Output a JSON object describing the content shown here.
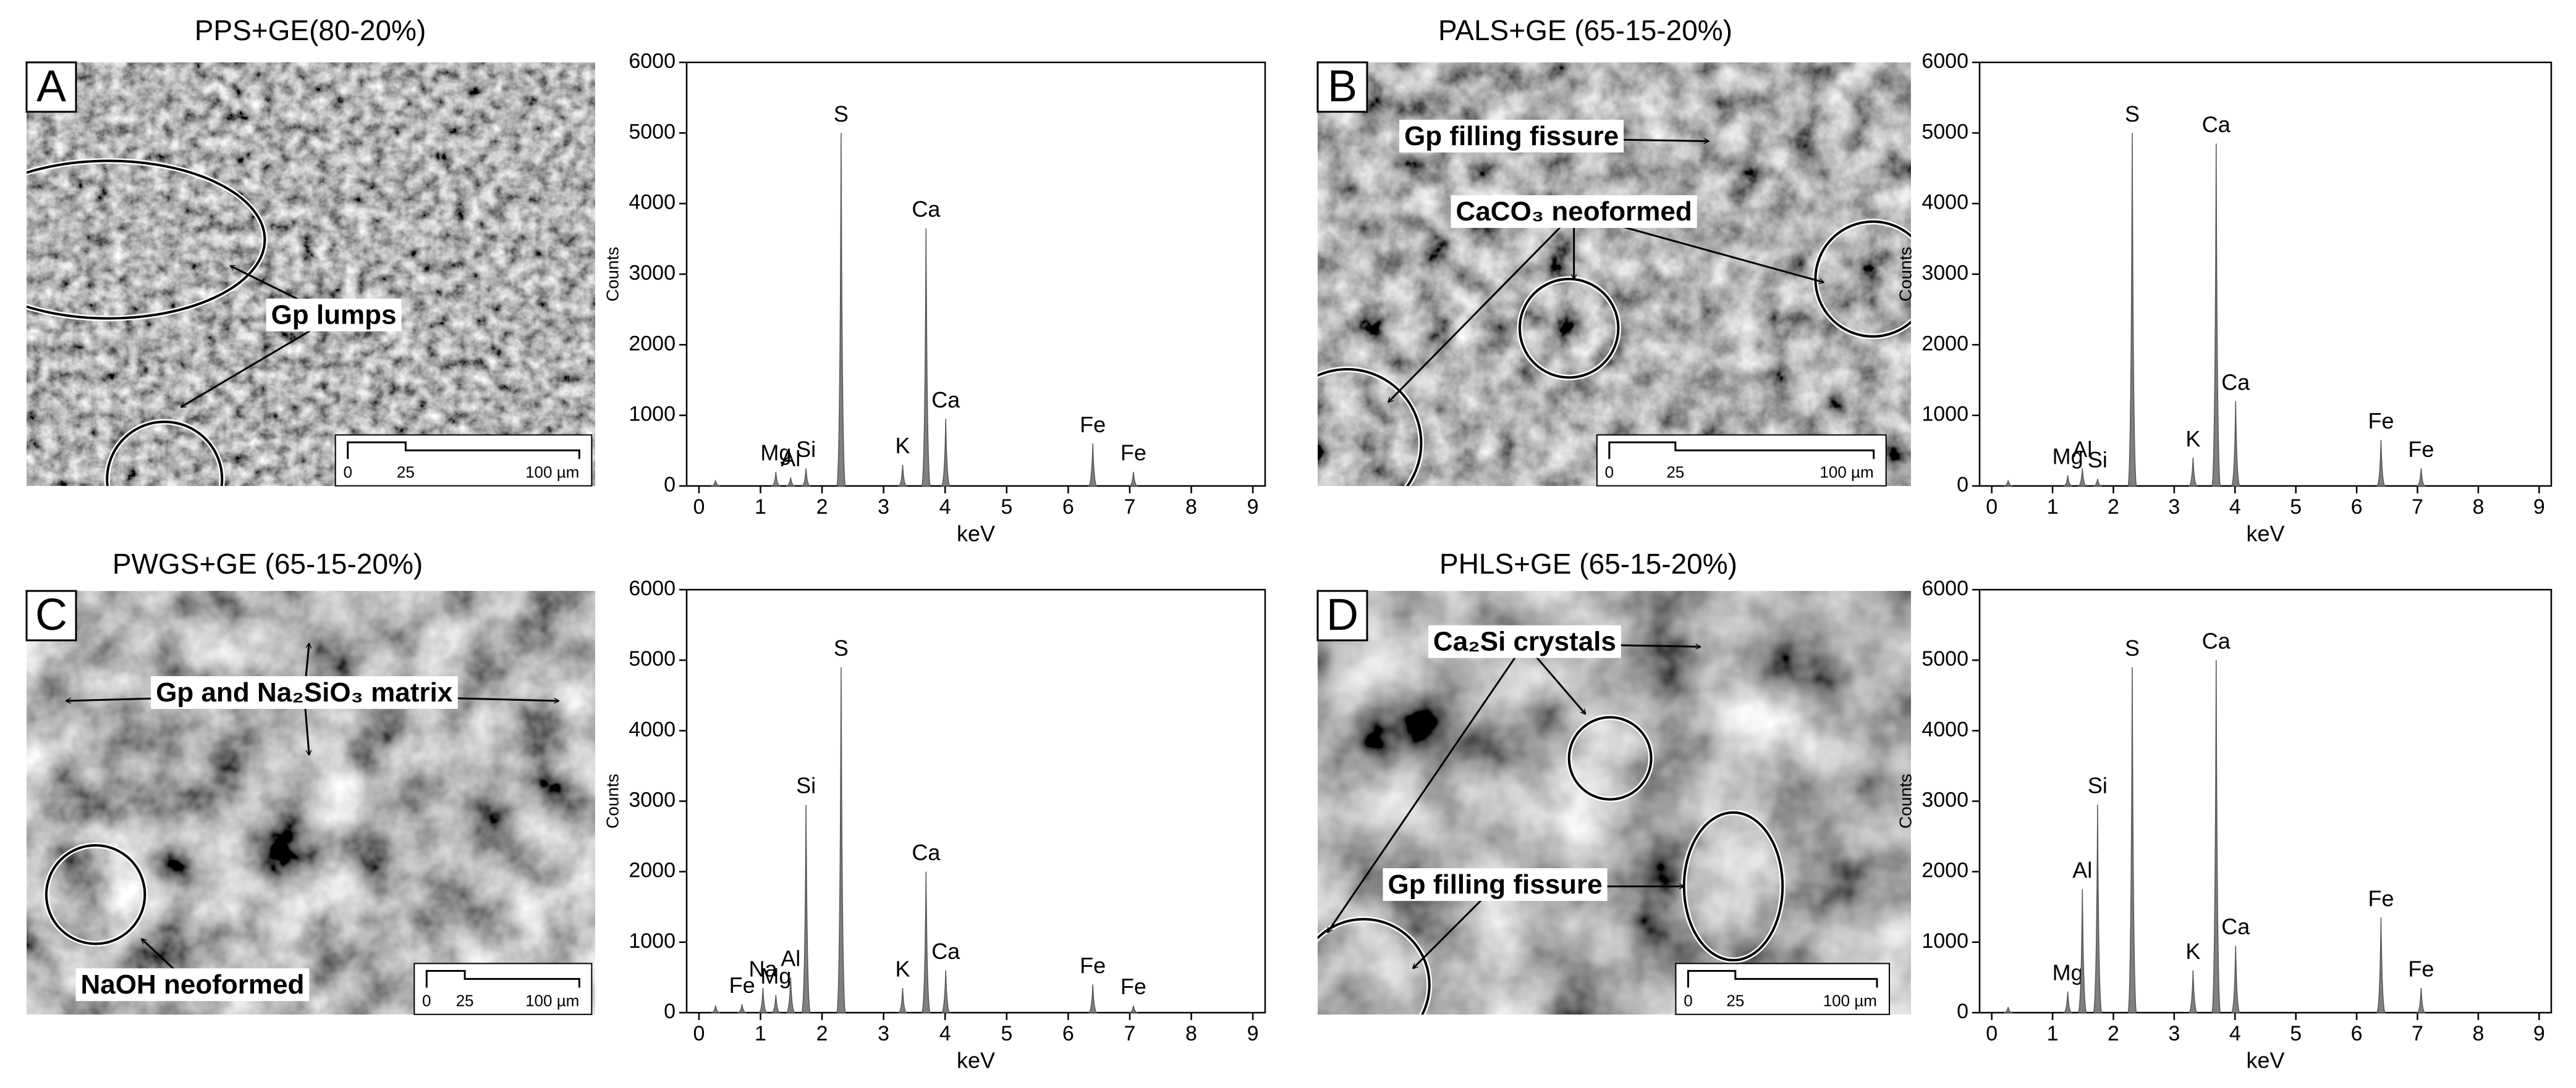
{
  "micrographs": [
    {
      "letter": "A",
      "title": "PPS+GE(80-20%)",
      "annotations": [
        "Gp lumps"
      ],
      "scale": [
        "0",
        "25",
        "100 µm"
      ]
    },
    {
      "letter": "B",
      "title": "PALS+GE (65-15-20%)",
      "annotations": [
        "Gp filling fissure",
        "CaCO₃ neoformed"
      ],
      "scale": [
        "0",
        "25",
        "100 µm"
      ]
    },
    {
      "letter": "C",
      "title": "PWGS+GE (65-15-20%)",
      "annotations": [
        "Gp and Na₂SiO₃ matrix",
        "NaOH neoformed"
      ],
      "scale": [
        "0",
        "25",
        "100 µm"
      ]
    },
    {
      "letter": "D",
      "title": "PHLS+GE (65-15-20%)",
      "annotations": [
        "Ca₂Si crystals",
        "Gp filling fissure"
      ],
      "scale": [
        "0",
        "25",
        "100 µm"
      ]
    }
  ],
  "chart_data": [
    {
      "type": "area",
      "xlabel": "keV",
      "ylabel": "Counts",
      "color": "#808080",
      "xlim": [
        -0.2,
        9.2
      ],
      "ylim": [
        0,
        6000
      ],
      "xticks": [
        0,
        1,
        2,
        3,
        4,
        5,
        6,
        7,
        8,
        9
      ],
      "yticks": [
        0,
        1000,
        2000,
        3000,
        4000,
        5000,
        6000
      ],
      "peaks": [
        {
          "label": null,
          "x": 0.27,
          "value": 80
        },
        {
          "label": "Mg",
          "x": 1.25,
          "value": 200
        },
        {
          "label": "Al",
          "x": 1.49,
          "value": 120
        },
        {
          "label": "Si",
          "x": 1.74,
          "value": 250
        },
        {
          "label": "S",
          "x": 2.31,
          "value": 5000
        },
        {
          "label": "K",
          "x": 3.31,
          "value": 300
        },
        {
          "label": "Ca",
          "x": 3.69,
          "value": 3650
        },
        {
          "label": "Ca",
          "x": 4.01,
          "value": 950
        },
        {
          "label": "Fe",
          "x": 6.4,
          "value": 600
        },
        {
          "label": "Fe",
          "x": 7.06,
          "value": 200
        }
      ]
    },
    {
      "type": "area",
      "xlabel": "keV",
      "ylabel": "Counts",
      "color": "#808080",
      "xlim": [
        -0.2,
        9.2
      ],
      "ylim": [
        0,
        6000
      ],
      "xticks": [
        0,
        1,
        2,
        3,
        4,
        5,
        6,
        7,
        8,
        9
      ],
      "yticks": [
        0,
        1000,
        2000,
        3000,
        4000,
        5000,
        6000
      ],
      "peaks": [
        {
          "label": null,
          "x": 0.27,
          "value": 80
        },
        {
          "label": "Mg",
          "x": 1.25,
          "value": 150
        },
        {
          "label": "Al",
          "x": 1.49,
          "value": 250
        },
        {
          "label": "Si",
          "x": 1.74,
          "value": 100
        },
        {
          "label": "S",
          "x": 2.31,
          "value": 5000
        },
        {
          "label": "K",
          "x": 3.31,
          "value": 400
        },
        {
          "label": "Ca",
          "x": 3.69,
          "value": 4850
        },
        {
          "label": "Ca",
          "x": 4.01,
          "value": 1200
        },
        {
          "label": "Fe",
          "x": 6.4,
          "value": 650
        },
        {
          "label": "Fe",
          "x": 7.06,
          "value": 250
        }
      ]
    },
    {
      "type": "area",
      "xlabel": "keV",
      "ylabel": "Counts",
      "color": "#808080",
      "xlim": [
        -0.2,
        9.2
      ],
      "ylim": [
        0,
        6000
      ],
      "xticks": [
        0,
        1,
        2,
        3,
        4,
        5,
        6,
        7,
        8,
        9
      ],
      "yticks": [
        0,
        1000,
        2000,
        3000,
        4000,
        5000,
        6000
      ],
      "peaks": [
        {
          "label": null,
          "x": 0.27,
          "value": 100
        },
        {
          "label": "Fe",
          "x": 0.7,
          "value": 120
        },
        {
          "label": "Na",
          "x": 1.04,
          "value": 350
        },
        {
          "label": "Mg",
          "x": 1.25,
          "value": 250
        },
        {
          "label": "Al",
          "x": 1.49,
          "value": 500
        },
        {
          "label": "Si",
          "x": 1.74,
          "value": 2950
        },
        {
          "label": "S",
          "x": 2.31,
          "value": 4900
        },
        {
          "label": "K",
          "x": 3.31,
          "value": 350
        },
        {
          "label": "Ca",
          "x": 3.69,
          "value": 2000
        },
        {
          "label": "Ca",
          "x": 4.01,
          "value": 600
        },
        {
          "label": "Fe",
          "x": 6.4,
          "value": 400
        },
        {
          "label": "Fe",
          "x": 7.06,
          "value": 100
        }
      ]
    },
    {
      "type": "area",
      "xlabel": "keV",
      "ylabel": "Counts",
      "color": "#808080",
      "xlim": [
        -0.2,
        9.2
      ],
      "ylim": [
        0,
        6000
      ],
      "xticks": [
        0,
        1,
        2,
        3,
        4,
        5,
        6,
        7,
        8,
        9
      ],
      "yticks": [
        0,
        1000,
        2000,
        3000,
        4000,
        5000,
        6000
      ],
      "peaks": [
        {
          "label": null,
          "x": 0.27,
          "value": 80
        },
        {
          "label": "Mg",
          "x": 1.25,
          "value": 300
        },
        {
          "label": "Al",
          "x": 1.49,
          "value": 1750
        },
        {
          "label": "Si",
          "x": 1.74,
          "value": 2950
        },
        {
          "label": "S",
          "x": 2.31,
          "value": 4900
        },
        {
          "label": "K",
          "x": 3.31,
          "value": 600
        },
        {
          "label": "Ca",
          "x": 3.69,
          "value": 5000
        },
        {
          "label": "Ca",
          "x": 4.01,
          "value": 950
        },
        {
          "label": "Fe",
          "x": 6.4,
          "value": 1350
        },
        {
          "label": "Fe",
          "x": 7.06,
          "value": 350
        }
      ]
    }
  ]
}
